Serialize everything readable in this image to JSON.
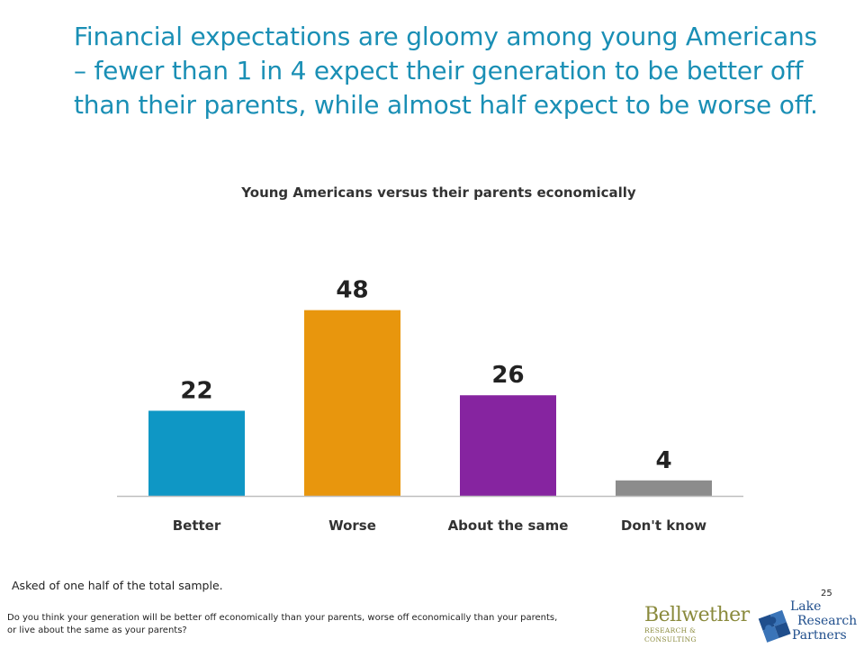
{
  "headline": "Financial expectations are gloomy among young Americans – fewer than 1 in 4 expect their generation to be better off than their parents, while almost half expect to be worse off.",
  "chart_data": {
    "type": "bar",
    "title": "Young Americans versus their parents economically",
    "categories": [
      "Better",
      "Worse",
      "About the same",
      "Don't know"
    ],
    "values": [
      22,
      48,
      26,
      4
    ],
    "colors": [
      "#0f97c5",
      "#e8960d",
      "#8624a0",
      "#8c8c8c"
    ],
    "ylim": [
      0,
      60
    ],
    "grid": false,
    "legend": "none",
    "xlabel": "",
    "ylabel": ""
  },
  "footer": {
    "sample_note": "Asked of one half of the total sample.",
    "question_line1": "Do you think your generation will be better off economically than your parents, worse off economically than your parents,",
    "question_line2": "or live about the same as your parents?",
    "page_number": "25"
  },
  "logos": {
    "bellwether_name": "Bellwether",
    "bellwether_sub": "RESEARCH & CONSULTING",
    "lake_line1": "Lake",
    "lake_line2": "Research",
    "lake_line3": "Partners"
  }
}
